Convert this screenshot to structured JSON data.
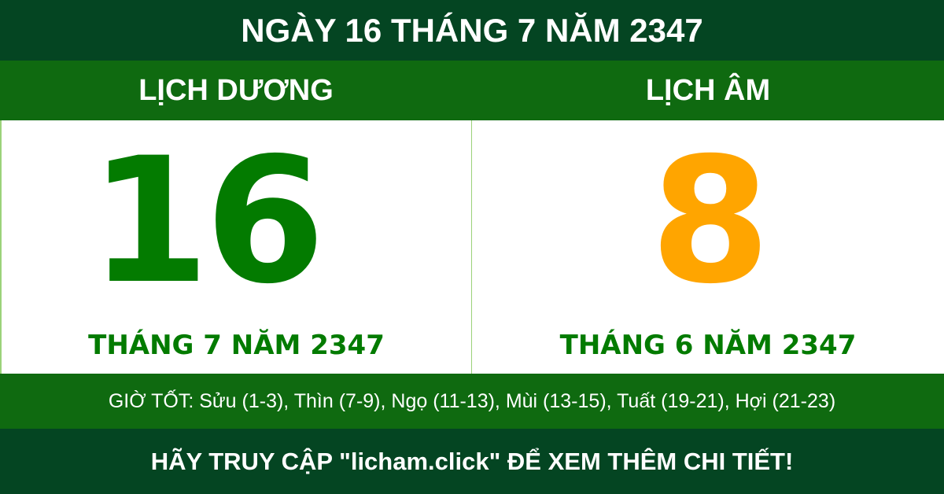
{
  "title": "NGÀY 16 THÁNG 7 NĂM 2347",
  "solar": {
    "header": "LỊCH DƯƠNG",
    "day": "16",
    "month_year": "THÁNG 7 NĂM 2347"
  },
  "lunar": {
    "header": "LỊCH ÂM",
    "day": "8",
    "month_year": "THÁNG 6 NĂM 2347"
  },
  "good_hours": "GIỜ TỐT: Sửu (1-3), Thìn (7-9), Ngọ (11-13), Mùi (13-15), Tuất (19-21), Hợi (21-23)",
  "footer": "HÃY TRUY CẬP \"licham.click\" ĐỂ XEM THÊM CHI TIẾT!",
  "colors": {
    "dark_green": "#044522",
    "green": "#0f6a10",
    "solar_day": "#037b00",
    "lunar_day": "#ffa500"
  }
}
